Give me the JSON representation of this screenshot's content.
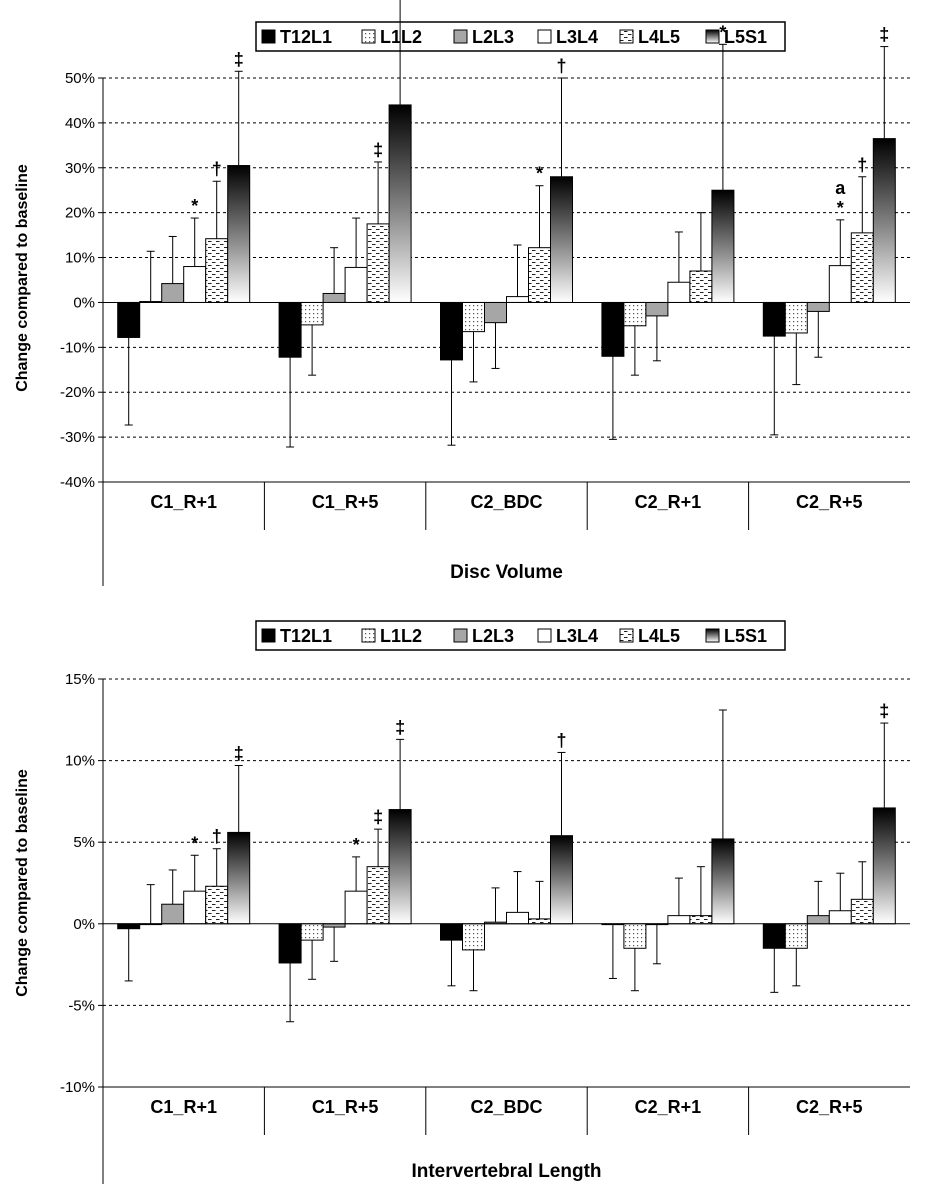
{
  "chart_data": [
    {
      "type": "bar",
      "categories": [
        "C1_R+1",
        "C1_R+5",
        "C2_BDC",
        "C2_R+1",
        "C2_R+5"
      ],
      "xlabel": "Disc Volume",
      "ylabel": "Change compared to baseline",
      "ylim": [
        -40,
        50
      ],
      "yticks": [
        -40,
        -30,
        -20,
        -10,
        0,
        10,
        20,
        30,
        40,
        50
      ],
      "ytick_labels": [
        "-40%",
        "-30%",
        "-20%",
        "-10%",
        "0%",
        "10%",
        "20%",
        "30%",
        "40%",
        "50%"
      ],
      "grid": "horizontal dashed",
      "legend_position": "top",
      "series": [
        {
          "name": "T12L1",
          "values": [
            -7.8,
            -12.2,
            -12.8,
            -12.0,
            -7.5
          ],
          "err": [
            19.5,
            20.0,
            19.0,
            18.5,
            22.0
          ],
          "marks": [
            "",
            "",
            "",
            "",
            ""
          ]
        },
        {
          "name": "L1L2",
          "values": [
            0.2,
            -5.0,
            -6.5,
            -5.2,
            -6.8
          ],
          "err": [
            11.2,
            11.2,
            11.2,
            11.0,
            11.5
          ],
          "marks": [
            "",
            "",
            "",
            "",
            ""
          ]
        },
        {
          "name": "L2L3",
          "values": [
            4.2,
            2.0,
            -4.5,
            -3.0,
            -2.0
          ],
          "err": [
            10.5,
            10.2,
            10.2,
            10.0,
            10.2
          ],
          "marks": [
            "",
            "",
            "",
            "",
            ""
          ]
        },
        {
          "name": "L3L4",
          "values": [
            8.0,
            7.8,
            1.3,
            4.5,
            8.2
          ],
          "err": [
            10.8,
            11.0,
            11.5,
            11.2,
            10.2
          ],
          "marks": [
            "*",
            "",
            "",
            "",
            "*"
          ]
        },
        {
          "name": "L4L5",
          "values": [
            14.2,
            17.5,
            12.2,
            7.0,
            15.5
          ],
          "err": [
            12.8,
            13.8,
            13.8,
            13.0,
            12.5
          ],
          "marks": [
            "†",
            "‡",
            "*",
            "",
            "†"
          ]
        },
        {
          "name": "L5S1",
          "values": [
            30.5,
            44.0,
            28.0,
            25.0,
            36.5
          ],
          "err": [
            21.0,
            24.5,
            22.0,
            32.5,
            20.5
          ],
          "marks": [
            "‡",
            "‡",
            "†",
            "*",
            "‡"
          ]
        }
      ],
      "extra_marks": [
        {
          "series": "L3L4",
          "category": "C2_R+5",
          "text": "a"
        }
      ]
    },
    {
      "type": "bar",
      "categories": [
        "C1_R+1",
        "C1_R+5",
        "C2_BDC",
        "C2_R+1",
        "C2_R+5"
      ],
      "xlabel": "Intervertebral Length",
      "ylabel": "Change compared to baseline",
      "ylim": [
        -10,
        15
      ],
      "yticks": [
        -10,
        -5,
        0,
        5,
        10,
        15
      ],
      "ytick_labels": [
        "-10%",
        "-5%",
        "0%",
        "5%",
        "10%",
        "15%"
      ],
      "grid": "horizontal dashed",
      "legend_position": "top",
      "series": [
        {
          "name": "T12L1",
          "values": [
            -0.3,
            -2.4,
            -1.0,
            -0.05,
            -1.5
          ],
          "err": [
            3.2,
            3.6,
            2.8,
            3.3,
            2.7
          ],
          "marks": [
            "",
            "",
            "",
            "",
            ""
          ]
        },
        {
          "name": "L1L2",
          "values": [
            0.0,
            -1.0,
            -1.6,
            -1.5,
            -1.5
          ],
          "err": [
            2.4,
            2.4,
            2.5,
            2.6,
            2.3
          ],
          "marks": [
            "",
            "",
            "",
            "",
            ""
          ]
        },
        {
          "name": "L2L3",
          "values": [
            1.2,
            -0.2,
            0.1,
            -0.05,
            0.5
          ],
          "err": [
            2.1,
            2.1,
            2.1,
            2.4,
            2.1
          ],
          "marks": [
            "",
            "",
            "",
            "",
            ""
          ]
        },
        {
          "name": "L3L4",
          "values": [
            2.0,
            2.0,
            0.7,
            0.5,
            0.8
          ],
          "err": [
            2.2,
            2.1,
            2.5,
            2.3,
            2.3
          ],
          "marks": [
            "*",
            "*",
            "",
            "",
            ""
          ]
        },
        {
          "name": "L4L5",
          "values": [
            2.3,
            3.5,
            0.3,
            0.5,
            1.5
          ],
          "err": [
            2.3,
            2.3,
            2.3,
            3.0,
            2.3
          ],
          "marks": [
            "†",
            "‡",
            "",
            "",
            ""
          ]
        },
        {
          "name": "L5S1",
          "values": [
            5.6,
            7.0,
            5.4,
            5.2,
            7.1
          ],
          "err": [
            4.1,
            4.3,
            5.1,
            7.9,
            5.2
          ],
          "marks": [
            "‡",
            "‡",
            "†",
            "",
            "‡"
          ]
        }
      ],
      "extra_marks": []
    }
  ]
}
